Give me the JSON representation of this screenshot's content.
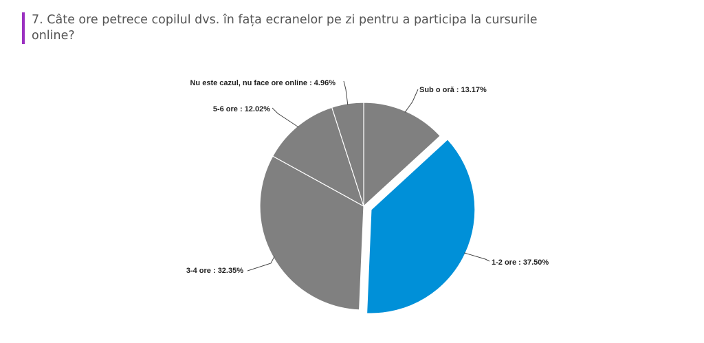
{
  "question": {
    "title": "7. Câte ore petrece copilul dvs. în fața ecranelor pe zi pentru a participa la cursurile online?"
  },
  "colors": {
    "accent_bar": "#9b30c0",
    "slice_default": "#808080",
    "slice_highlight": "#0090d8"
  },
  "chart_data": {
    "type": "pie",
    "title": "",
    "slices": [
      {
        "label": "Sub o oră : 13.17%",
        "category": "Sub o oră",
        "value": 13.17,
        "color": "#808080",
        "exploded": false
      },
      {
        "label": "1-2 ore : 37.50%",
        "category": "1-2 ore",
        "value": 37.5,
        "color": "#0090d8",
        "exploded": true
      },
      {
        "label": "3-4 ore : 32.35%",
        "category": "3-4 ore",
        "value": 32.35,
        "color": "#808080",
        "exploded": false
      },
      {
        "label": "5-6 ore : 12.02%",
        "category": "5-6 ore",
        "value": 12.02,
        "color": "#808080",
        "exploded": false
      },
      {
        "label": "Nu este cazul, nu face ore online : 4.96%",
        "category": "Nu este cazul, nu face ore online",
        "value": 4.96,
        "color": "#808080",
        "exploded": false
      }
    ],
    "start": "12 o'clock",
    "direction": "clockwise",
    "legend": "none"
  }
}
